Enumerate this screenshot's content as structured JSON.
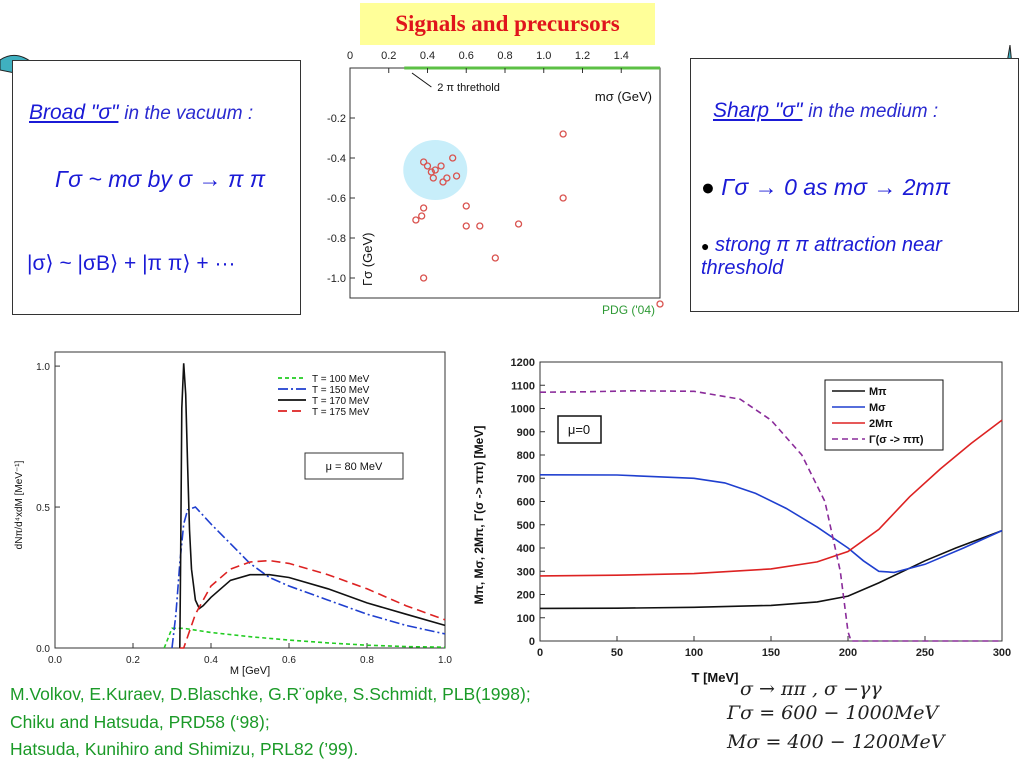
{
  "slide_title": "Signals and precursors",
  "left_box": {
    "heading_sigma": "Broad \"σ\"",
    "heading_rest": "in the vacuum :",
    "line2": "Γσ ~ mσ by σ → π π",
    "line3": "|σ⟩ ~ |σB⟩ + |π π⟩ + ···"
  },
  "right_box": {
    "heading_sigma": "Sharp \"σ\"",
    "heading_rest": "in the medium :",
    "bullet1": "Γσ → 0 as mσ → 2mπ",
    "bullet2": "strong π π attraction near threshold"
  },
  "references": [
    "M.Volkov, E.Kuraev, D.Blaschke, G.R¨opke, S.Schmidt, PLB(1998);",
    "Chiku and Hatsuda, PRD58 (‘98);",
    "Hatsuda, Kunihiro and Shimizu, PRL82 (’99)."
  ],
  "equations": [
    "σ → ππ ,  σ −γγ",
    "Γσ = 600 − 1000MeV",
    "Mσ = 400 − 1200MeV"
  ],
  "colors": {
    "title_bg": "#ffff99",
    "title_text": "#e0141c",
    "handwriting": "#1b1bd6",
    "references": "#1b9a28",
    "scatter_marker": "#d9534f",
    "highlight": "#c8eefa"
  },
  "chart_data": [
    {
      "type": "scatter",
      "xlabel": "mσ (GeV)",
      "ylabel": "Γσ (GeV)",
      "xlim": [
        0,
        1.6
      ],
      "ylim": [
        -1.1,
        0.05
      ],
      "xticks": [
        "0",
        "0.2",
        "0.4",
        "0.6",
        "0.8",
        "1.0",
        "1.2",
        "1.4"
      ],
      "yticks": [
        "-0.2",
        "-0.4",
        "-0.6",
        "-0.8",
        "-1.0"
      ],
      "annotation": "2 π threthold",
      "source_label": "PDG ('04)",
      "points": [
        [
          0.38,
          -0.42
        ],
        [
          0.4,
          -0.44
        ],
        [
          0.42,
          -0.47
        ],
        [
          0.44,
          -0.46
        ],
        [
          0.47,
          -0.44
        ],
        [
          0.48,
          -0.52
        ],
        [
          0.5,
          -0.5
        ],
        [
          0.43,
          -0.5
        ],
        [
          0.55,
          -0.49
        ],
        [
          0.53,
          -0.4
        ],
        [
          0.6,
          -0.64
        ],
        [
          0.6,
          -0.74
        ],
        [
          0.67,
          -0.74
        ],
        [
          0.75,
          -0.9
        ],
        [
          0.38,
          -0.65
        ],
        [
          0.37,
          -0.69
        ],
        [
          0.34,
          -0.71
        ],
        [
          0.38,
          -1.0
        ],
        [
          1.1,
          -0.28
        ],
        [
          1.1,
          -0.6
        ],
        [
          0.87,
          -0.73
        ],
        [
          1.6,
          -1.13
        ]
      ]
    },
    {
      "type": "line",
      "xlabel": "M [GeV]",
      "ylabel": "dNπ/d⁴xdM [MeV⁻¹]",
      "xlim": [
        0,
        1.0
      ],
      "ylim": [
        0,
        1.05
      ],
      "xticks": [
        "0.0",
        "0.2",
        "0.4",
        "0.6",
        "0.8",
        "1.0"
      ],
      "yticks": [
        "0.0",
        "0.5",
        "1.0"
      ],
      "annotation": "μ = 80 MeV",
      "legend_position": "top-right",
      "series": [
        {
          "name": "T = 100 MeV",
          "color": "#22cc22",
          "dash": "4,3",
          "x": [
            0.28,
            0.3,
            0.33,
            0.4,
            0.5,
            0.6,
            0.7,
            0.8,
            0.9,
            1.0
          ],
          "y": [
            0.0,
            0.07,
            0.07,
            0.055,
            0.04,
            0.028,
            0.018,
            0.01,
            0.005,
            0.003
          ]
        },
        {
          "name": "T = 150 MeV",
          "color": "#1f3fcf",
          "dash": "10,3,2,3",
          "x": [
            0.3,
            0.31,
            0.32,
            0.33,
            0.34,
            0.36,
            0.38,
            0.4,
            0.45,
            0.5,
            0.55,
            0.6,
            0.7,
            0.8,
            0.9,
            1.0
          ],
          "y": [
            0.0,
            0.12,
            0.3,
            0.44,
            0.49,
            0.5,
            0.47,
            0.44,
            0.37,
            0.3,
            0.25,
            0.22,
            0.17,
            0.12,
            0.08,
            0.05
          ]
        },
        {
          "name": "T = 170 MeV",
          "color": "#111111",
          "dash": "",
          "x": [
            0.32,
            0.322,
            0.325,
            0.33,
            0.335,
            0.34,
            0.345,
            0.35,
            0.36,
            0.37,
            0.38,
            0.4,
            0.45,
            0.5,
            0.55,
            0.6,
            0.7,
            0.8,
            0.9,
            1.0
          ],
          "y": [
            0.0,
            0.3,
            0.85,
            1.01,
            0.9,
            0.65,
            0.42,
            0.28,
            0.17,
            0.14,
            0.15,
            0.18,
            0.24,
            0.26,
            0.26,
            0.25,
            0.21,
            0.16,
            0.12,
            0.08
          ]
        },
        {
          "name": "T = 175 MeV",
          "color": "#dd2222",
          "dash": "9,5",
          "x": [
            0.32,
            0.33,
            0.34,
            0.36,
            0.38,
            0.4,
            0.45,
            0.5,
            0.55,
            0.6,
            0.7,
            0.8,
            0.9,
            1.0
          ],
          "y": [
            0.0,
            0.0,
            0.04,
            0.12,
            0.17,
            0.22,
            0.28,
            0.305,
            0.31,
            0.3,
            0.26,
            0.21,
            0.15,
            0.1
          ]
        }
      ]
    },
    {
      "type": "line",
      "xlabel": "T [MeV]",
      "ylabel": "Mπ, Mσ, 2Mπ, Γ(σ -> ππ) [MeV]",
      "xlim": [
        0,
        300
      ],
      "ylim": [
        0,
        1200
      ],
      "xticks": [
        "0",
        "50",
        "100",
        "150",
        "200",
        "250",
        "300"
      ],
      "yticks": [
        "0",
        "100",
        "200",
        "300",
        "400",
        "500",
        "600",
        "700",
        "800",
        "900",
        "1000",
        "1100",
        "1200"
      ],
      "annotation": "μ=0",
      "legend_position": "top-right",
      "series": [
        {
          "name": "Mπ",
          "color": "#111111",
          "dash": "",
          "x": [
            0,
            50,
            100,
            150,
            180,
            200,
            220,
            250,
            270,
            300
          ],
          "y": [
            140,
            141,
            145,
            153,
            168,
            193,
            250,
            345,
            400,
            475
          ]
        },
        {
          "name": "Mσ",
          "color": "#1f3fcf",
          "dash": "",
          "x": [
            0,
            50,
            100,
            120,
            140,
            160,
            180,
            200,
            210,
            220,
            230,
            250,
            275,
            300
          ],
          "y": [
            715,
            714,
            700,
            680,
            635,
            570,
            490,
            400,
            345,
            300,
            295,
            330,
            400,
            475
          ]
        },
        {
          "name": "2Mπ",
          "color": "#dd2222",
          "dash": "",
          "x": [
            0,
            50,
            100,
            150,
            180,
            200,
            220,
            240,
            260,
            280,
            300
          ],
          "y": [
            280,
            283,
            290,
            310,
            340,
            385,
            480,
            620,
            740,
            850,
            950
          ]
        },
        {
          "name": "Γ(σ -> ππ)",
          "color": "#8a2b9a",
          "dash": "6,4",
          "x": [
            0,
            30,
            60,
            100,
            130,
            150,
            170,
            185,
            195,
            200,
            202,
            300
          ],
          "y": [
            1070,
            1072,
            1076,
            1074,
            1040,
            950,
            800,
            600,
            300,
            40,
            0,
            0
          ]
        }
      ]
    }
  ]
}
